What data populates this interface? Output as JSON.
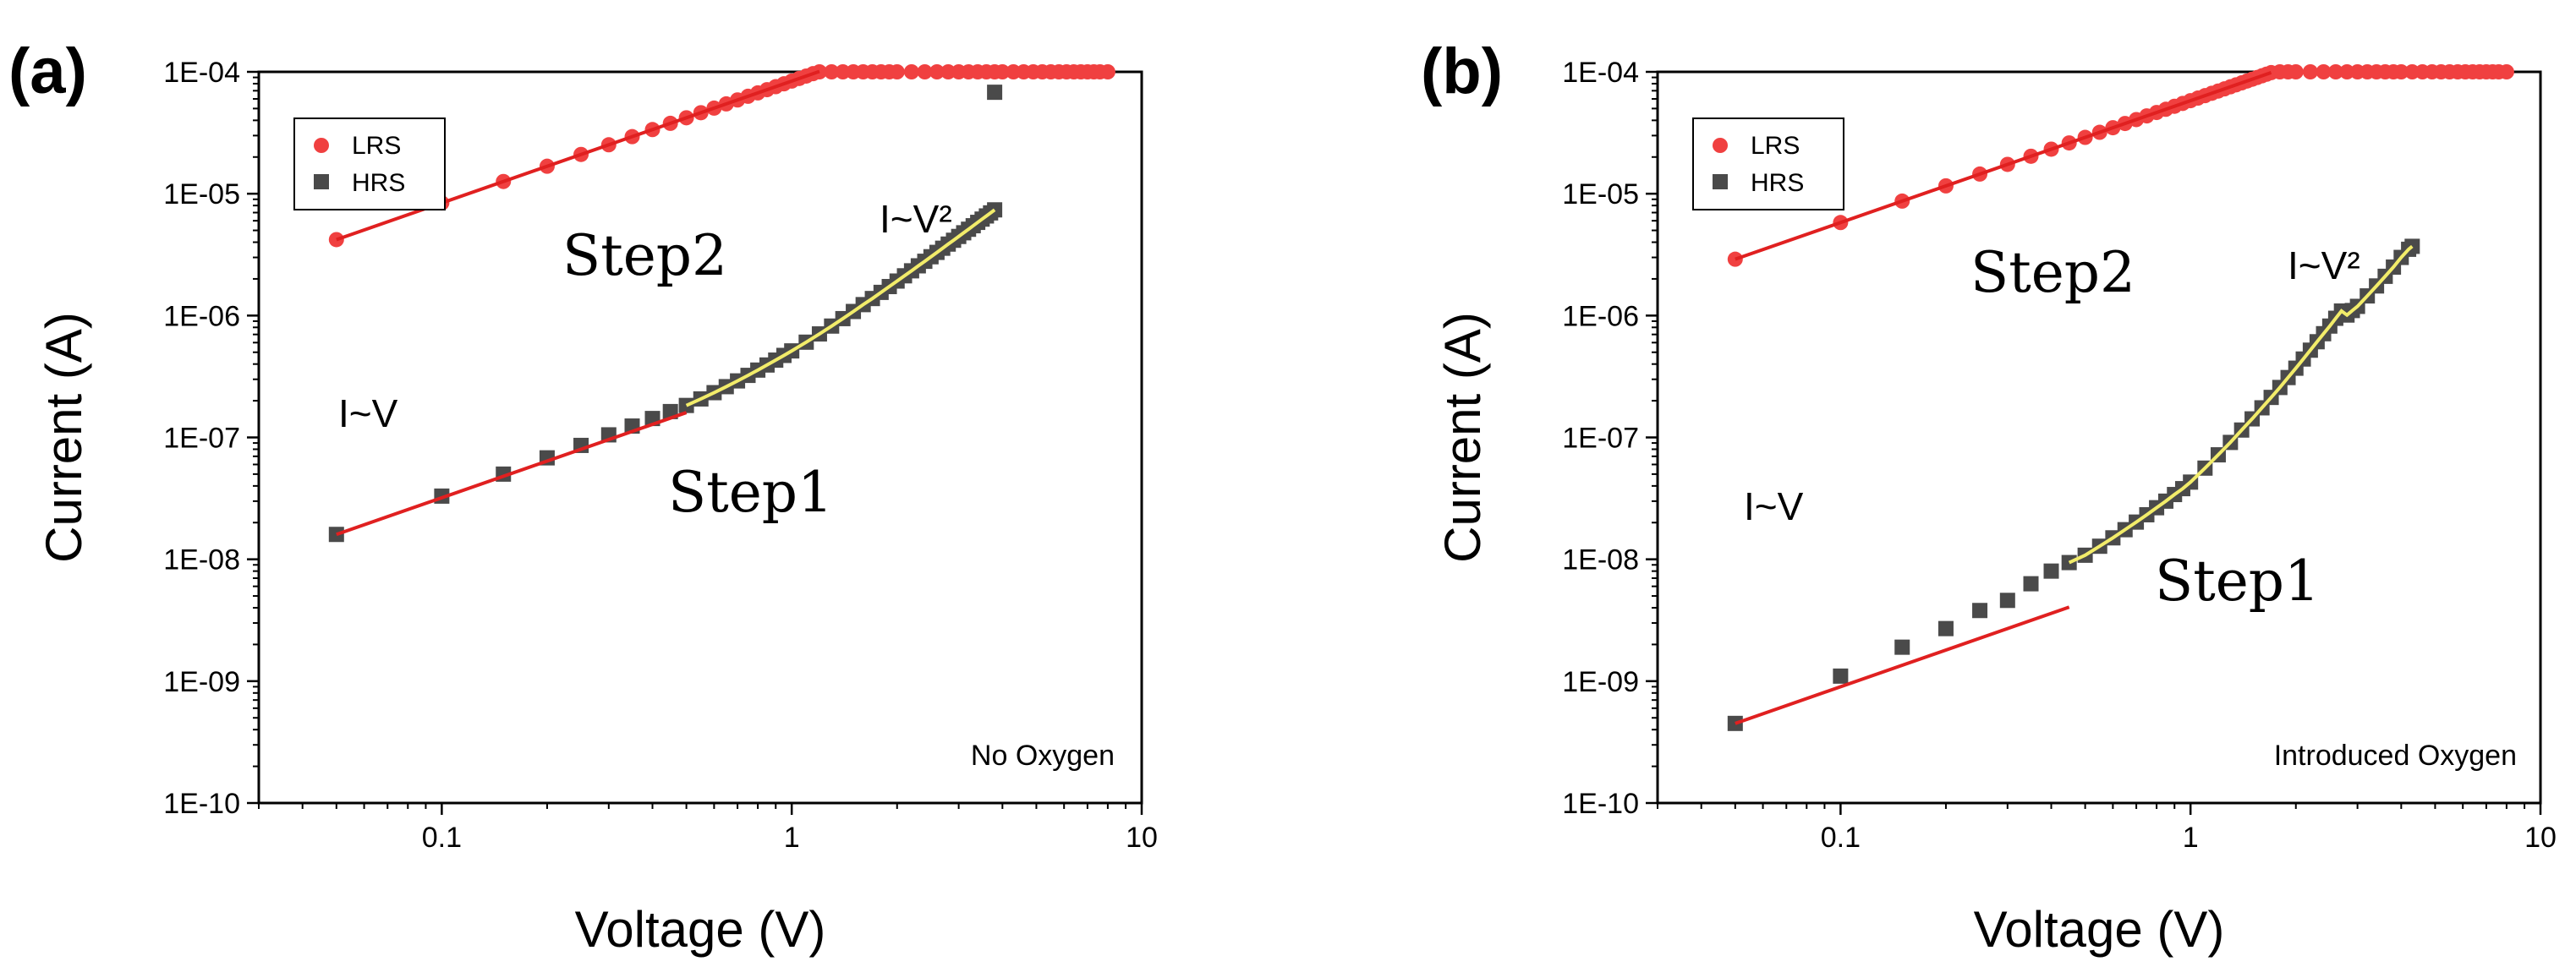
{
  "chart_data": [
    {
      "type": "scatter",
      "panel_label": "(a)",
      "xlabel": "Voltage (V)",
      "ylabel": "Current (A)",
      "xscale": "log",
      "yscale": "log",
      "xlim": [
        0.03,
        10
      ],
      "ylim": [
        1e-10,
        0.0001
      ],
      "x_ticks": [
        0.1,
        1,
        10
      ],
      "x_tick_labels": [
        "0.1",
        "1",
        "10"
      ],
      "y_ticks": [
        1e-10,
        1e-09,
        1e-08,
        1e-07,
        1e-06,
        1e-05,
        0.0001
      ],
      "y_tick_labels": [
        "1E-10",
        "1E-09",
        "1E-08",
        "1E-07",
        "1E-06",
        "1E-05",
        "1E-04"
      ],
      "legend": {
        "position": "top-left",
        "entries": [
          "LRS",
          "HRS"
        ]
      },
      "condition_label": "No Oxygen",
      "annotations": {
        "step2": "Step2",
        "step1": "Step1",
        "ohmic": "I~V",
        "sclc": "I~V²"
      },
      "colors": {
        "lrs": "#f04040",
        "hrs": "#4a4a4a",
        "fit_linear": "#e02020",
        "fit_sclc": "#f2ec6a"
      },
      "series": [
        {
          "name": "LRS",
          "marker": "circle",
          "x": [
            0.05,
            0.1,
            0.15,
            0.2,
            0.25,
            0.3,
            0.35,
            0.4,
            0.45,
            0.5,
            0.55,
            0.6,
            0.65,
            0.7,
            0.75,
            0.8,
            0.85,
            0.9,
            0.95,
            1.0,
            1.05,
            1.1,
            1.15,
            1.2,
            1.3,
            1.4,
            1.5,
            1.6,
            1.7,
            1.8,
            1.9,
            2.0,
            2.2,
            2.4,
            2.6,
            2.8,
            3.0,
            3.2,
            3.4,
            3.6,
            3.8,
            4.0,
            4.3,
            4.6,
            4.9,
            5.2,
            5.5,
            5.8,
            6.1,
            6.4,
            6.7,
            7.0,
            7.3,
            7.6,
            8.0
          ],
          "y": [
            4.2e-06,
            8.4e-06,
            1.26e-05,
            1.68e-05,
            2.1e-05,
            2.52e-05,
            2.94e-05,
            3.36e-05,
            3.78e-05,
            4.2e-05,
            4.62e-05,
            5.04e-05,
            5.46e-05,
            5.88e-05,
            6.3e-05,
            6.72e-05,
            7.14e-05,
            7.56e-05,
            7.98e-05,
            8.4e-05,
            8.82e-05,
            9.24e-05,
            9.66e-05,
            0.0001,
            0.0001,
            0.0001,
            0.0001,
            0.0001,
            0.0001,
            0.0001,
            0.0001,
            0.0001,
            0.0001,
            0.0001,
            0.0001,
            0.0001,
            0.0001,
            0.0001,
            0.0001,
            0.0001,
            0.0001,
            0.0001,
            0.0001,
            0.0001,
            0.0001,
            0.0001,
            0.0001,
            0.0001,
            0.0001,
            0.0001,
            0.0001,
            0.0001,
            0.0001,
            0.0001,
            0.0001
          ]
        },
        {
          "name": "HRS",
          "marker": "square",
          "x": [
            0.05,
            0.1,
            0.15,
            0.2,
            0.25,
            0.3,
            0.35,
            0.4,
            0.45,
            0.5,
            0.55,
            0.6,
            0.65,
            0.7,
            0.75,
            0.8,
            0.85,
            0.9,
            0.95,
            1.0,
            1.1,
            1.2,
            1.3,
            1.4,
            1.5,
            1.6,
            1.7,
            1.8,
            1.9,
            2.0,
            2.1,
            2.2,
            2.3,
            2.4,
            2.5,
            2.6,
            2.7,
            2.8,
            2.9,
            3.0,
            3.1,
            3.2,
            3.3,
            3.4,
            3.5,
            3.6,
            3.7,
            3.8,
            3.8
          ],
          "y": [
            1.6e-08,
            3.3e-08,
            5e-08,
            6.8e-08,
            8.6e-08,
            1.05e-07,
            1.24e-07,
            1.43e-07,
            1.63e-07,
            1.83e-07,
            2.07e-07,
            2.33e-07,
            2.61e-07,
            2.91e-07,
            3.23e-07,
            3.57e-07,
            3.93e-07,
            4.31e-07,
            4.71e-07,
            5.13e-07,
            6.05e-07,
            7.07e-07,
            8.2e-07,
            9.44e-07,
            1.08e-06,
            1.23e-06,
            1.38e-06,
            1.55e-06,
            1.73e-06,
            1.92e-06,
            2.12e-06,
            2.33e-06,
            2.56e-06,
            2.79e-06,
            3.04e-06,
            3.3e-06,
            3.57e-06,
            3.86e-06,
            4.15e-06,
            4.46e-06,
            4.78e-06,
            5.11e-06,
            5.46e-06,
            5.82e-06,
            6.19e-06,
            6.57e-06,
            6.96e-06,
            7.37e-06,
            6.8e-05
          ]
        }
      ],
      "fits": [
        {
          "name": "LRS linear fit",
          "x_range": [
            0.05,
            1.2
          ],
          "y_at_start": 4.2e-06,
          "slope": 1
        },
        {
          "name": "HRS ohmic fit",
          "x_range": [
            0.05,
            0.5
          ],
          "y_at_start": 1.6e-08,
          "slope": 1
        },
        {
          "name": "HRS SCLC fit",
          "x_range": [
            0.5,
            3.8
          ],
          "y_at_start": 1.83e-07
        }
      ]
    },
    {
      "type": "scatter",
      "panel_label": "(b)",
      "xlabel": "Voltage (V)",
      "ylabel": "Current (A)",
      "xscale": "log",
      "yscale": "log",
      "xlim": [
        0.03,
        10
      ],
      "ylim": [
        1e-10,
        0.0001
      ],
      "x_ticks": [
        0.1,
        1,
        10
      ],
      "x_tick_labels": [
        "0.1",
        "1",
        "10"
      ],
      "y_ticks": [
        1e-10,
        1e-09,
        1e-08,
        1e-07,
        1e-06,
        1e-05,
        0.0001
      ],
      "y_tick_labels": [
        "1E-10",
        "1E-09",
        "1E-08",
        "1E-07",
        "1E-06",
        "1E-05",
        "1E-04"
      ],
      "legend": {
        "position": "top-left",
        "entries": [
          "LRS",
          "HRS"
        ]
      },
      "condition_label": "Introduced Oxygen",
      "annotations": {
        "step2": "Step2",
        "step1": "Step1",
        "ohmic": "I~V",
        "sclc": "I~V²"
      },
      "colors": {
        "lrs": "#f04040",
        "hrs": "#4a4a4a",
        "fit_linear": "#e02020",
        "fit_sclc": "#f2ec6a"
      },
      "series": [
        {
          "name": "LRS",
          "marker": "circle",
          "x": [
            0.05,
            0.1,
            0.15,
            0.2,
            0.25,
            0.3,
            0.35,
            0.4,
            0.45,
            0.5,
            0.55,
            0.6,
            0.65,
            0.7,
            0.75,
            0.8,
            0.85,
            0.9,
            0.95,
            1.0,
            1.05,
            1.1,
            1.15,
            1.2,
            1.25,
            1.3,
            1.35,
            1.4,
            1.45,
            1.5,
            1.55,
            1.6,
            1.65,
            1.7,
            1.8,
            1.9,
            2.0,
            2.2,
            2.4,
            2.6,
            2.8,
            3.0,
            3.2,
            3.4,
            3.6,
            3.8,
            4.0,
            4.3,
            4.6,
            4.9,
            5.2,
            5.5,
            5.8,
            6.1,
            6.4,
            6.7,
            7.0,
            7.3,
            7.6,
            8.0
          ],
          "y": [
            2.9e-06,
            5.8e-06,
            8.7e-06,
            1.16e-05,
            1.45e-05,
            1.74e-05,
            2.03e-05,
            2.32e-05,
            2.61e-05,
            2.9e-05,
            3.19e-05,
            3.48e-05,
            3.77e-05,
            4.06e-05,
            4.35e-05,
            4.64e-05,
            4.93e-05,
            5.22e-05,
            5.51e-05,
            5.8e-05,
            6.09e-05,
            6.38e-05,
            6.67e-05,
            6.96e-05,
            7.25e-05,
            7.54e-05,
            7.83e-05,
            8.12e-05,
            8.41e-05,
            8.7e-05,
            8.99e-05,
            9.28e-05,
            9.57e-05,
            9.86e-05,
            0.0001,
            0.0001,
            0.0001,
            0.0001,
            0.0001,
            0.0001,
            0.0001,
            0.0001,
            0.0001,
            0.0001,
            0.0001,
            0.0001,
            0.0001,
            0.0001,
            0.0001,
            0.0001,
            0.0001,
            0.0001,
            0.0001,
            0.0001,
            0.0001,
            0.0001,
            0.0001,
            0.0001,
            0.0001,
            0.0001
          ]
        },
        {
          "name": "HRS",
          "marker": "square",
          "x": [
            0.05,
            0.1,
            0.15,
            0.2,
            0.25,
            0.3,
            0.35,
            0.4,
            0.45,
            0.5,
            0.55,
            0.6,
            0.65,
            0.7,
            0.75,
            0.8,
            0.85,
            0.9,
            0.95,
            1.0,
            1.1,
            1.2,
            1.3,
            1.4,
            1.5,
            1.6,
            1.7,
            1.8,
            1.9,
            2.0,
            2.1,
            2.2,
            2.3,
            2.4,
            2.5,
            2.6,
            2.7,
            2.8,
            2.9,
            3.0,
            3.2,
            3.4,
            3.6,
            3.8,
            4.0,
            4.2,
            4.3
          ],
          "y": [
            4.5e-10,
            1.1e-09,
            1.9e-09,
            2.7e-09,
            3.8e-09,
            4.6e-09,
            6.3e-09,
            8e-09,
            9.4e-09,
            1.08e-08,
            1.28e-08,
            1.5e-08,
            1.75e-08,
            2.02e-08,
            2.32e-08,
            2.65e-08,
            3e-08,
            3.4e-08,
            3.8e-08,
            4.3e-08,
            5.6e-08,
            7.2e-08,
            9.1e-08,
            1.15e-07,
            1.42e-07,
            1.75e-07,
            2.13e-07,
            2.57e-07,
            3.1e-07,
            3.7e-07,
            4.4e-07,
            5.2e-07,
            6.1e-07,
            7.1e-07,
            8.2e-07,
            9.5e-07,
            1.09e-06,
            1.01e-06,
            1.1e-06,
            1.19e-06,
            1.45e-06,
            1.75e-06,
            2.1e-06,
            2.5e-06,
            3e-06,
            3.5e-06,
            3.7e-06
          ]
        }
      ],
      "fits": [
        {
          "name": "LRS linear fit",
          "x_range": [
            0.05,
            1.7
          ],
          "y_at_start": 2.9e-06,
          "slope": 1
        },
        {
          "name": "HRS ohmic fit",
          "x_range": [
            0.05,
            0.45
          ],
          "y_at_start": 4.5e-10,
          "slope": 1
        },
        {
          "name": "HRS SCLC fit",
          "x_range": [
            0.45,
            4.3
          ],
          "y_at_start": 9.4e-09
        }
      ]
    }
  ]
}
